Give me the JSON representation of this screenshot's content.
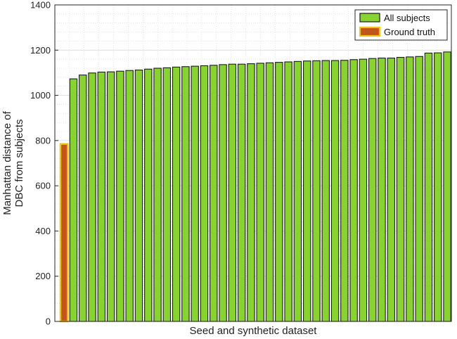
{
  "chart_data": {
    "type": "bar",
    "title": "",
    "xlabel": "Seed and synthetic dataset",
    "ylabel_lines": [
      "Manhattan distance of",
      "DBC from subjects"
    ],
    "ylim": [
      0,
      1400
    ],
    "yticks": [
      0,
      200,
      400,
      600,
      800,
      1000,
      1200,
      1400
    ],
    "grid": true,
    "grid_minor": true,
    "legend_position": "top-right",
    "series": [
      {
        "name": "Ground truth",
        "color": "#c0561b",
        "edge_color": "#f2c21b",
        "values": [
          785
        ]
      },
      {
        "name": "All subjects",
        "color": "#88d231",
        "edge_color": "#1a1a1a",
        "values": [
          1073,
          1090,
          1099,
          1103,
          1104,
          1107,
          1110,
          1112,
          1116,
          1120,
          1122,
          1125,
          1127,
          1129,
          1131,
          1133,
          1136,
          1138,
          1138,
          1140,
          1142,
          1144,
          1146,
          1148,
          1150,
          1152,
          1153,
          1154,
          1154,
          1155,
          1158,
          1160,
          1163,
          1165,
          1165,
          1168,
          1170,
          1172,
          1187,
          1188,
          1192
        ]
      }
    ]
  }
}
